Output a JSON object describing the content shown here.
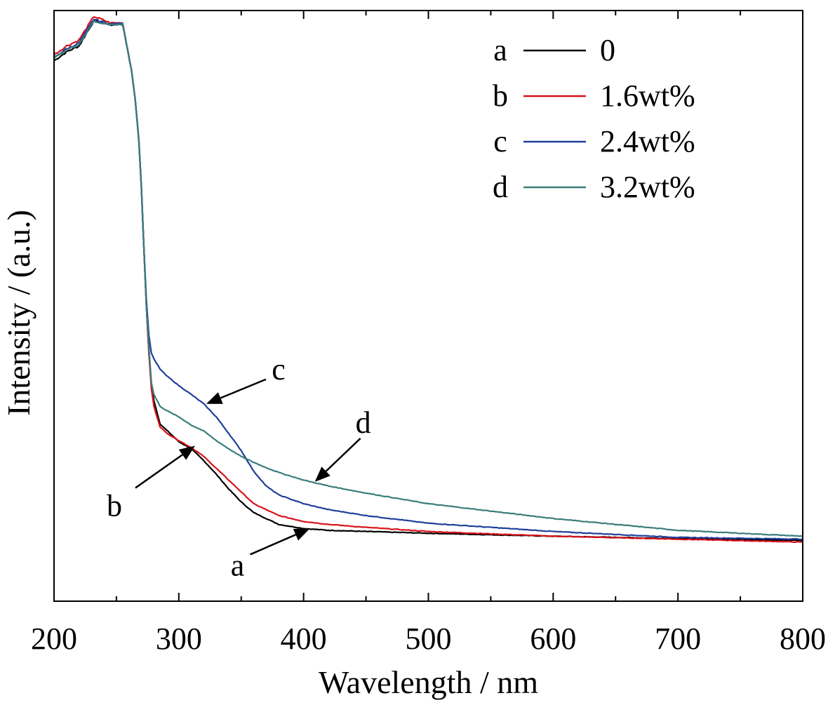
{
  "chart_data": {
    "type": "line",
    "xlabel": "Wavelength / nm",
    "ylabel": "Intensity / (a.u.)",
    "xlim": [
      200,
      800
    ],
    "ylim": [
      0,
      100
    ],
    "x_ticks": [
      200,
      300,
      400,
      500,
      600,
      700,
      800
    ],
    "y_ticks_labeled": false,
    "grid": false,
    "legend_position": "top-right",
    "series": [
      {
        "name": "0",
        "legend_letter": "a",
        "color": "#000000",
        "x": [
          200,
          210,
          220,
          232,
          245,
          255,
          262,
          265,
          268,
          270,
          272,
          274,
          276,
          278,
          280,
          285,
          290,
          300,
          310,
          320,
          330,
          340,
          350,
          360,
          380,
          400,
          420,
          450,
          500,
          600,
          700,
          800
        ],
        "y": [
          91.5,
          93,
          94,
          98.3,
          97.6,
          97.7,
          90,
          85,
          78,
          70,
          60,
          50,
          42,
          37,
          34,
          30,
          29,
          27,
          25.8,
          23.8,
          21.5,
          19,
          16.8,
          15,
          13,
          12.3,
          12,
          11.8,
          11.5,
          11,
          10.6,
          10.3
        ]
      },
      {
        "name": "1.6wt%",
        "legend_letter": "b",
        "color": "#d7141c",
        "x": [
          200,
          210,
          220,
          232,
          245,
          255,
          262,
          265,
          268,
          270,
          272,
          274,
          276,
          278,
          280,
          285,
          290,
          300,
          310,
          320,
          330,
          340,
          350,
          360,
          380,
          400,
          420,
          450,
          500,
          600,
          700,
          800
        ],
        "y": [
          92.5,
          94,
          95,
          99,
          97.9,
          97.9,
          90,
          85,
          78,
          70,
          60,
          50,
          42,
          36,
          33,
          29.5,
          28.5,
          27.2,
          26,
          24.5,
          22.5,
          20.5,
          18.5,
          16.5,
          14.5,
          13.5,
          13,
          12.5,
          11.8,
          11,
          10.5,
          10
        ]
      },
      {
        "name": "2.4wt%",
        "legend_letter": "c",
        "color": "#1f3f9a",
        "x": [
          200,
          210,
          220,
          232,
          245,
          255,
          262,
          265,
          268,
          270,
          272,
          274,
          276,
          278,
          280,
          285,
          290,
          300,
          310,
          320,
          330,
          340,
          350,
          360,
          370,
          380,
          400,
          420,
          450,
          500,
          600,
          700,
          800
        ],
        "y": [
          92,
          93.5,
          94.5,
          98.5,
          97.7,
          97.8,
          90,
          85,
          78,
          70,
          60,
          51,
          45,
          42,
          41,
          39.3,
          38.2,
          36.5,
          35,
          33.4,
          31.2,
          28.4,
          25.5,
          22,
          19.5,
          18,
          16.5,
          15.5,
          14.5,
          13.2,
          11.8,
          10.8,
          10.5
        ]
      },
      {
        "name": "3.2wt%",
        "legend_letter": "d",
        "color": "#3a7d7d",
        "x": [
          200,
          210,
          220,
          232,
          245,
          255,
          262,
          265,
          268,
          270,
          272,
          274,
          276,
          278,
          280,
          285,
          290,
          300,
          310,
          320,
          330,
          340,
          350,
          360,
          370,
          380,
          400,
          420,
          450,
          500,
          600,
          700,
          800
        ],
        "y": [
          92,
          93.3,
          94.3,
          98.2,
          97.6,
          97.7,
          90,
          85,
          78,
          70,
          60,
          50,
          43,
          37,
          35,
          33,
          32.3,
          31.2,
          29.8,
          28.8,
          27.2,
          25.8,
          24.5,
          23.5,
          22.6,
          21.8,
          20.5,
          19.5,
          18.3,
          16.5,
          14,
          12,
          11
        ]
      }
    ],
    "annotations": [
      {
        "text": "a",
        "target_x": 405,
        "target_y": 12.3
      },
      {
        "text": "b",
        "target_x": 313,
        "target_y": 26.3
      },
      {
        "text": "c",
        "target_x": 322,
        "target_y": 33.4
      },
      {
        "text": "d",
        "target_x": 409,
        "target_y": 20.2
      }
    ]
  }
}
